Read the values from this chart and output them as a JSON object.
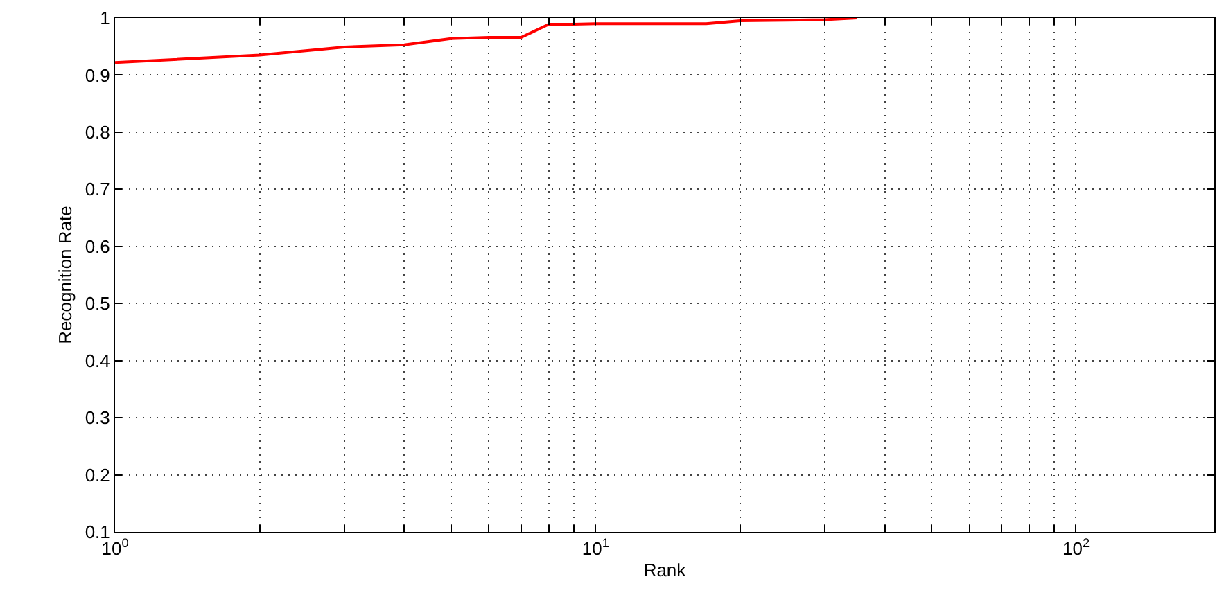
{
  "chart_data": {
    "type": "line",
    "xlabel": "Rank",
    "ylabel": "Recognition Rate",
    "log": "x",
    "grid": true,
    "line_style": "solid",
    "xlim": [
      1,
      194
    ],
    "ylim": [
      0.1,
      1
    ],
    "xticks": [
      {
        "value": 1,
        "label": "10$^{0}$"
      },
      {
        "value": 2,
        "label": null
      },
      {
        "value": 3,
        "label": null
      },
      {
        "value": 4,
        "label": null
      },
      {
        "value": 5,
        "label": null
      },
      {
        "value": 6,
        "label": null
      },
      {
        "value": 7,
        "label": null
      },
      {
        "value": 8,
        "label": null
      },
      {
        "value": 9,
        "label": null
      },
      {
        "value": 10,
        "label": "10$^{1}$"
      },
      {
        "value": 20,
        "label": null
      },
      {
        "value": 30,
        "label": null
      },
      {
        "value": 40,
        "label": null
      },
      {
        "value": 50,
        "label": null
      },
      {
        "value": 60,
        "label": null
      },
      {
        "value": 70,
        "label": null
      },
      {
        "value": 80,
        "label": null
      },
      {
        "value": 90,
        "label": null
      },
      {
        "value": 100,
        "label": "10$^{2}$"
      }
    ],
    "yticks": [
      0.1,
      0.2,
      0.3,
      0.4,
      0.5,
      0.6,
      0.7,
      0.8,
      0.9,
      1
    ],
    "series": [
      {
        "color": "#ff0000",
        "x": [
          1,
          2,
          3,
          4,
          5,
          6,
          7,
          8,
          9,
          10,
          17,
          20,
          25,
          30,
          35
        ],
        "values": [
          0.922,
          0.935,
          0.949,
          0.953,
          0.964,
          0.966,
          0.966,
          0.989,
          0.989,
          0.99,
          0.99,
          0.995,
          0.996,
          0.997,
          1.0
        ]
      }
    ]
  }
}
